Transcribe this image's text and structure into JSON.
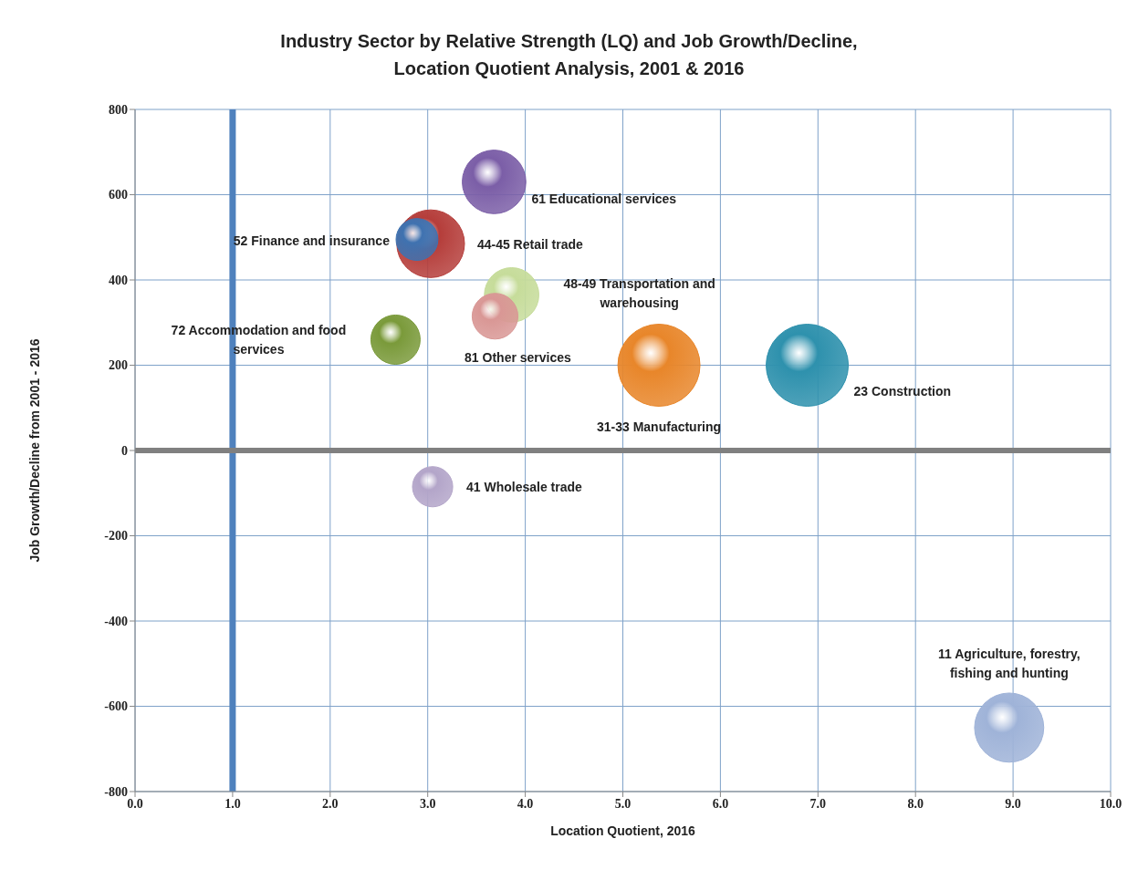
{
  "chart_data": {
    "type": "bubble",
    "title": "Industry Sector by Relative Strength (LQ) and Job Growth/Decline,\nLocation Quotient Analysis, 2001 & 2016",
    "xlabel": "Location Quotient, 2016",
    "ylabel": "Job Growth/Decline from 2001 - 2016",
    "xlim": [
      0,
      10
    ],
    "xticks": [
      {
        "value": 0,
        "label": "0.0"
      },
      {
        "value": 1,
        "label": "1.0"
      },
      {
        "value": 2,
        "label": "2.0"
      },
      {
        "value": 3,
        "label": "3.0"
      },
      {
        "value": 4,
        "label": "4.0"
      },
      {
        "value": 5,
        "label": "5.0"
      },
      {
        "value": 6,
        "label": "6.0"
      },
      {
        "value": 7,
        "label": "7.0"
      },
      {
        "value": 8,
        "label": "8.0"
      },
      {
        "value": 9,
        "label": "9.0"
      },
      {
        "value": 10,
        "label": "10.0"
      }
    ],
    "ylim": [
      -800,
      800
    ],
    "yticks": [
      -800,
      -600,
      -400,
      -200,
      0,
      200,
      400,
      600,
      800
    ],
    "grid": true,
    "ref_lines": [
      {
        "axis": "x",
        "value": 1,
        "color": "#4f81bd"
      },
      {
        "axis": "y",
        "value": 0,
        "color": "#808080"
      }
    ],
    "series": [
      {
        "name": "61 Educational services",
        "color": "#7b5ea7",
        "x": [
          3.68
        ],
        "values": [
          630
        ],
        "sizes": [
          0.6
        ]
      },
      {
        "name": "44-45 Retail trade",
        "color": "#b53d3a",
        "x": [
          3.03
        ],
        "values": [
          485
        ],
        "sizes": [
          0.68
        ]
      },
      {
        "name": "52 Finance and insurance",
        "color": "#3f72b0",
        "x": [
          2.89
        ],
        "values": [
          495
        ],
        "sizes": [
          0.26
        ]
      },
      {
        "name": "48-49 Transportation and warehousing",
        "color": "#c6dc9a",
        "x": [
          3.86
        ],
        "values": [
          365
        ],
        "sizes": [
          0.44
        ]
      },
      {
        "name": "81 Other services",
        "color": "#d99795",
        "x": [
          3.69
        ],
        "values": [
          315
        ],
        "sizes": [
          0.31
        ]
      },
      {
        "name": "72 Accommodation and food services",
        "color": "#7a9a3a",
        "x": [
          2.67
        ],
        "values": [
          260
        ],
        "sizes": [
          0.36
        ]
      },
      {
        "name": "31-33 Manufacturing",
        "color": "#e8862a",
        "x": [
          5.37
        ],
        "values": [
          200
        ],
        "sizes": [
          1
        ]
      },
      {
        "name": "23 Construction",
        "color": "#2e91ad",
        "x": [
          6.89
        ],
        "values": [
          200
        ],
        "sizes": [
          1
        ]
      },
      {
        "name": "41 Wholesale trade",
        "color": "#b3a5c9",
        "x": [
          3.05
        ],
        "values": [
          -85
        ],
        "sizes": [
          0.24
        ]
      },
      {
        "name": "11 Agriculture, forestry, fishing and hunting",
        "color": "#9fb3d8",
        "x": [
          8.96
        ],
        "values": [
          -650
        ],
        "sizes": [
          0.71
        ]
      }
    ]
  }
}
